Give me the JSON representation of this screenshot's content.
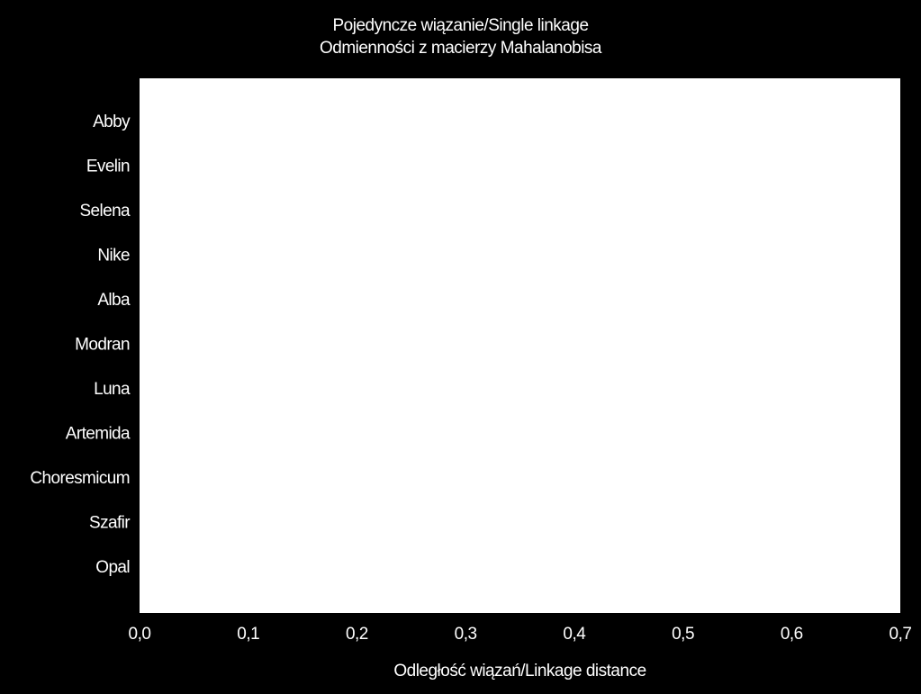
{
  "chart_data": {
    "type": "dendrogram",
    "orientation": "horizontal",
    "title": "Pojedyncze wiązanie/Single linkage",
    "subtitle": "Odmienności z macierzy Mahalanobisa",
    "xlabel": "Odległość wiązań/Linkage distance",
    "ylabel": "",
    "categories": [
      "Abby",
      "Evelin",
      "Selena",
      "Nike",
      "Alba",
      "Modran",
      "Luna",
      "Artemida",
      "Choresmicum",
      "Szafir",
      "Opal"
    ],
    "x_ticks": [
      "0,0",
      "0,1",
      "0,2",
      "0,3",
      "0,4",
      "0,5",
      "0,6",
      "0,7"
    ],
    "xlim": [
      0,
      0.7
    ],
    "plot_background": "#ffffff",
    "page_background": "#000000",
    "text_color": "#ffffff",
    "links": [],
    "grid": false,
    "legend": "none"
  }
}
